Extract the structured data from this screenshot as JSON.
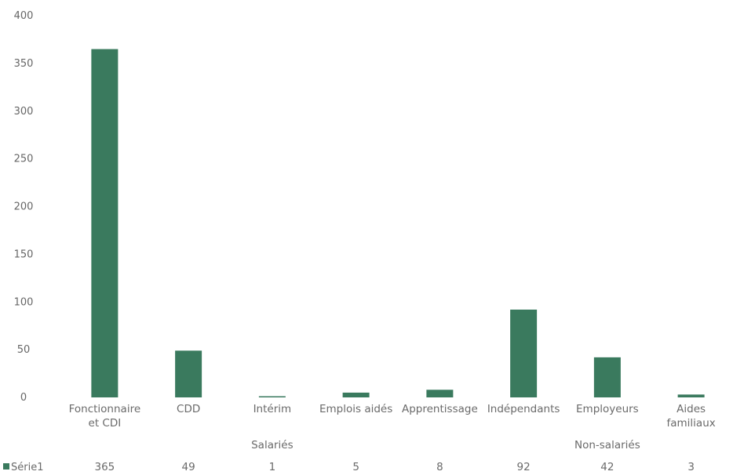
{
  "chart_data": {
    "type": "bar",
    "categories": [
      [
        "Fonctionnaire",
        "et CDI"
      ],
      [
        "CDD"
      ],
      [
        "Intérim"
      ],
      [
        "Emplois aidés"
      ],
      [
        "Apprentissage"
      ],
      [
        "Indépendants"
      ],
      [
        "Employeurs"
      ],
      [
        "Aides",
        "familiaux"
      ]
    ],
    "groups": [
      {
        "label": "Salariés",
        "from": 0,
        "to": 4
      },
      {
        "label": "Non-salariés",
        "from": 5,
        "to": 7
      }
    ],
    "series": [
      {
        "name": "Série1",
        "color": "#3a7a5e",
        "values": [
          365,
          49,
          1,
          5,
          8,
          92,
          42,
          3
        ]
      }
    ],
    "ylim": [
      0,
      400
    ],
    "yticks": [
      0,
      50,
      100,
      150,
      200,
      250,
      300,
      350,
      400
    ],
    "gridlines": false,
    "legend": "bottom-left data table"
  }
}
